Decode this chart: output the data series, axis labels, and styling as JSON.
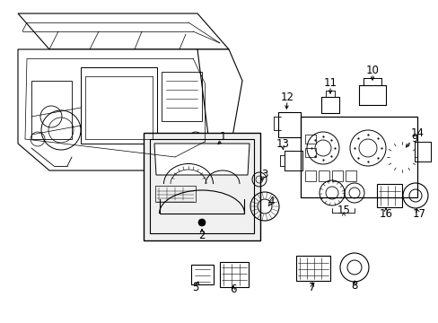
{
  "background_color": "#ffffff",
  "line_color": "#000000",
  "label_fontsize": 8.5,
  "fig_width": 4.89,
  "fig_height": 3.6,
  "dpi": 100
}
